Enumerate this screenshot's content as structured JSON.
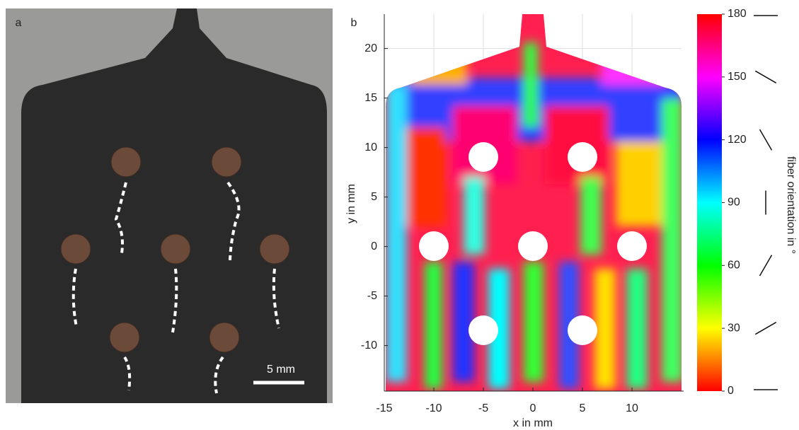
{
  "panel_a": {
    "label": "a",
    "scale_bar": "5 mm"
  },
  "chart_data": {
    "type": "heatmap",
    "label": "b",
    "xlabel": "x in mm",
    "ylabel": "y in mm",
    "xlim": [
      -15,
      15
    ],
    "ylim": [
      -14.6,
      23.5
    ],
    "xticks": [
      -15,
      -10,
      -5,
      0,
      5,
      10
    ],
    "yticks": [
      -10,
      -5,
      0,
      5,
      10,
      15,
      20
    ],
    "grid": true,
    "colorbar": {
      "label": "fiber orientation in °",
      "lim": [
        0,
        180
      ],
      "ticks": [
        0,
        30,
        60,
        90,
        120,
        150,
        180
      ]
    }
  }
}
